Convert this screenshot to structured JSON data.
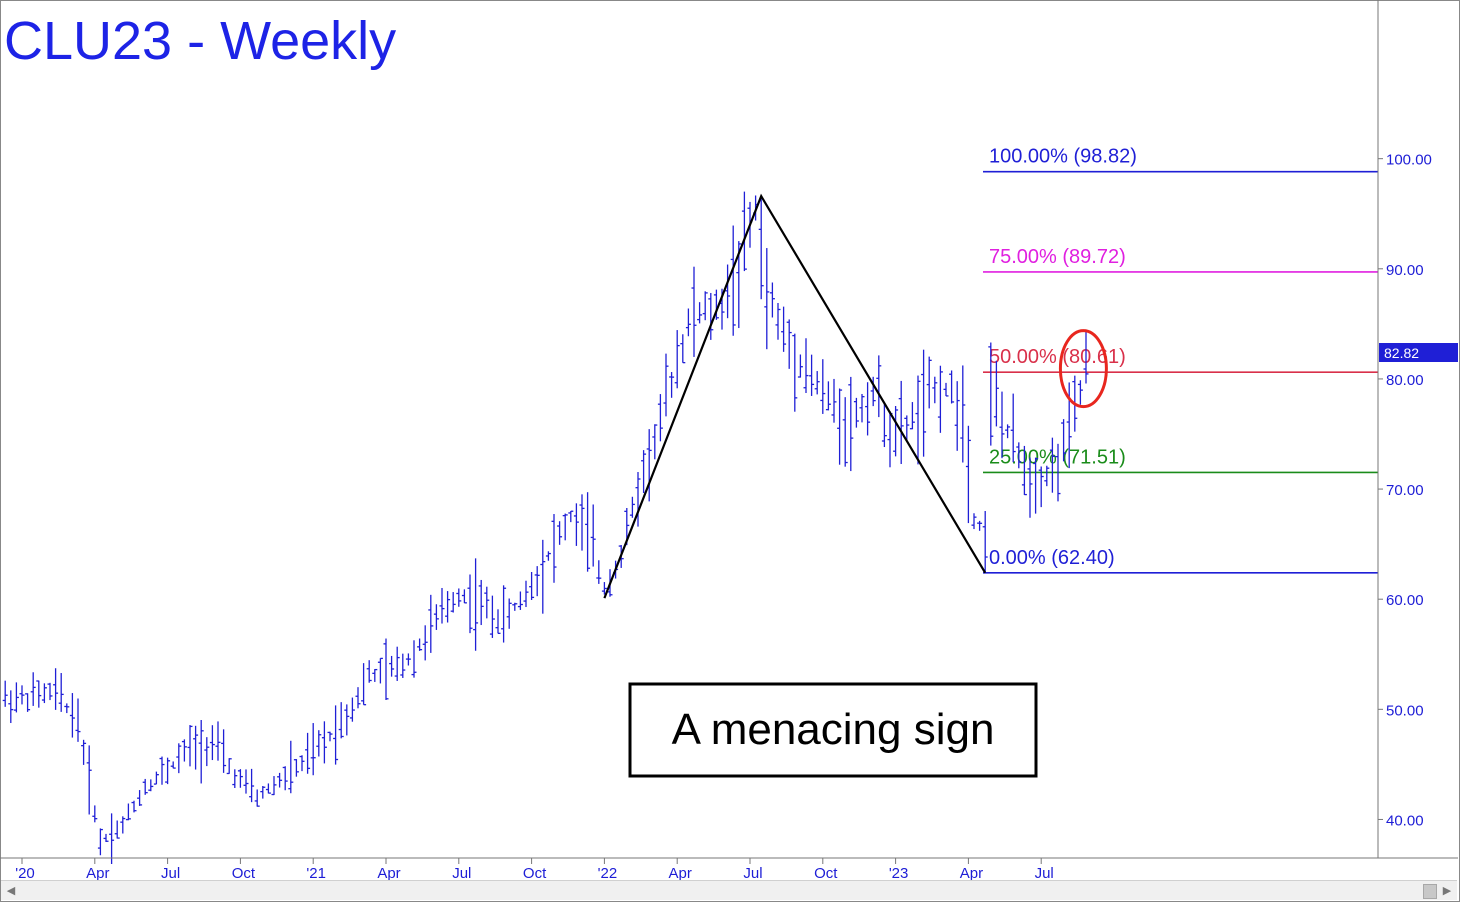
{
  "chart_data": {
    "type": "ohlc",
    "title": "CLU23 - Weekly",
    "annotation": "A menacing sign",
    "last_price_label": "82.82",
    "last_price": 82.82,
    "ylim": [
      36.5,
      113.5
    ],
    "y_ticks": [
      {
        "value": 100,
        "label": "100.00"
      },
      {
        "value": 90,
        "label": "90.00"
      },
      {
        "value": 80,
        "label": "80.00"
      },
      {
        "value": 70,
        "label": "70.00"
      },
      {
        "value": 60,
        "label": "60.00"
      },
      {
        "value": 50,
        "label": "50.00"
      },
      {
        "value": 40,
        "label": "40.00"
      }
    ],
    "x_ticks": [
      {
        "week": 0,
        "label": "'20"
      },
      {
        "week": 13,
        "label": "Apr"
      },
      {
        "week": 26,
        "label": "Jul"
      },
      {
        "week": 39,
        "label": "Oct"
      },
      {
        "week": 52,
        "label": "'21"
      },
      {
        "week": 65,
        "label": "Apr"
      },
      {
        "week": 78,
        "label": "Jul"
      },
      {
        "week": 91,
        "label": "Oct"
      },
      {
        "week": 104,
        "label": "'22"
      },
      {
        "week": 117,
        "label": "Apr"
      },
      {
        "week": 130,
        "label": "Jul"
      },
      {
        "week": 143,
        "label": "Oct"
      },
      {
        "week": 156,
        "label": "'23"
      },
      {
        "week": 169,
        "label": "Apr"
      },
      {
        "week": 182,
        "label": "Jul"
      }
    ],
    "fib_levels": [
      {
        "label": "100.00% (98.82)",
        "value": 98.82,
        "color": "#1f1fd6"
      },
      {
        "label": "75.00% (89.72)",
        "value": 89.72,
        "color": "#e020e0"
      },
      {
        "label": "50.00% (80.61)",
        "value": 80.61,
        "color": "#d9304a"
      },
      {
        "label": "25.00% (71.51)",
        "value": 71.51,
        "color": "#1a8c1a"
      },
      {
        "label": "0.00% (62.40)",
        "value": 62.4,
        "color": "#1f1fd6"
      }
    ],
    "pattern_points": [
      {
        "week": 104,
        "value": 60.1
      },
      {
        "week": 132,
        "value": 96.6
      },
      {
        "week": 172,
        "value": 62.4
      }
    ],
    "highlight": {
      "week": 189,
      "value": 81.3
    },
    "anchors": [
      [
        0,
        51
      ],
      [
        6,
        51.5
      ],
      [
        10,
        49
      ],
      [
        14,
        38
      ],
      [
        18,
        39.5
      ],
      [
        22,
        43
      ],
      [
        26,
        44.5
      ],
      [
        30,
        46.5
      ],
      [
        34,
        47
      ],
      [
        38,
        44
      ],
      [
        42,
        42
      ],
      [
        46,
        43.5
      ],
      [
        50,
        45
      ],
      [
        54,
        47
      ],
      [
        58,
        49.5
      ],
      [
        62,
        53
      ],
      [
        66,
        53.5
      ],
      [
        70,
        55
      ],
      [
        74,
        58
      ],
      [
        78,
        60.5
      ],
      [
        82,
        59.5
      ],
      [
        86,
        58
      ],
      [
        90,
        60.5
      ],
      [
        94,
        64
      ],
      [
        98,
        67.5
      ],
      [
        101,
        66
      ],
      [
        104,
        61
      ],
      [
        107,
        64
      ],
      [
        110,
        70
      ],
      [
        114,
        76
      ],
      [
        117,
        82
      ],
      [
        120,
        86
      ],
      [
        124,
        86
      ],
      [
        128,
        90
      ],
      [
        131,
        95.5
      ],
      [
        133,
        88
      ],
      [
        136,
        84
      ],
      [
        140,
        81
      ],
      [
        144,
        78
      ],
      [
        148,
        76
      ],
      [
        152,
        79
      ],
      [
        156,
        74.5
      ],
      [
        160,
        77
      ],
      [
        164,
        79.5
      ],
      [
        168,
        77.5
      ],
      [
        170,
        67.5
      ],
      [
        172,
        66
      ],
      [
        173,
        79
      ],
      [
        176,
        75
      ],
      [
        180,
        71
      ],
      [
        184,
        71.5
      ],
      [
        187,
        75
      ],
      [
        190,
        81
      ]
    ]
  }
}
